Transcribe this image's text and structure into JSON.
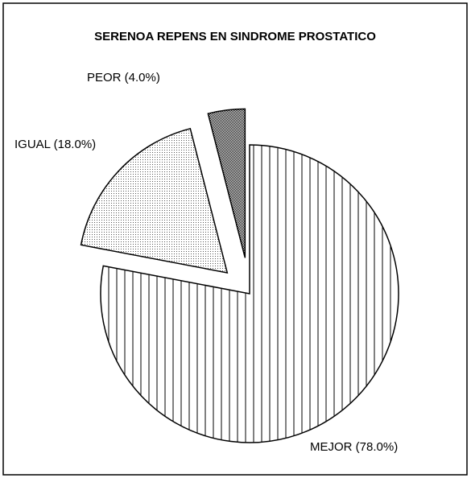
{
  "chart_data": {
    "type": "pie",
    "title": "SERENOA REPENS EN SINDROME PROSTATICO",
    "values": [
      78,
      18,
      4
    ],
    "value_labels": [
      "MEJOR (78.0%)",
      "IGUAL (18.0%)",
      "PEOR (4.0%)"
    ],
    "patterns": [
      "vertical-lines",
      "light-dots",
      "dense-dots"
    ],
    "exploded": [
      false,
      true,
      true
    ]
  }
}
